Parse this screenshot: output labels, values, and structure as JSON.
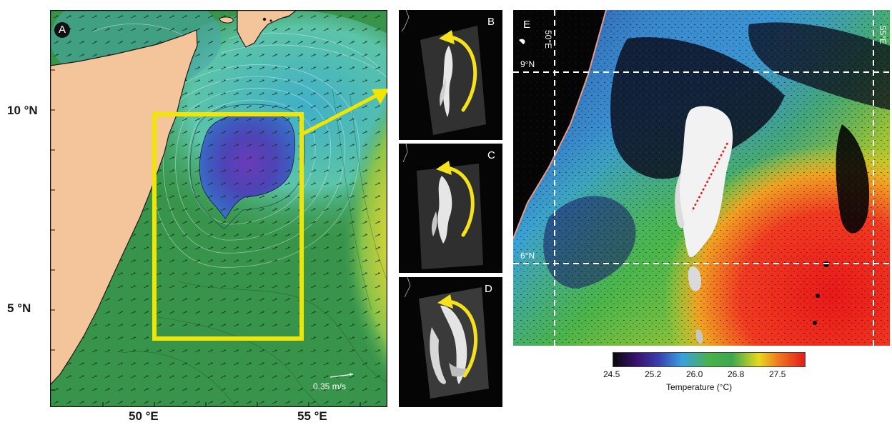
{
  "panel_a": {
    "letter": "A",
    "y_labels": [
      "10 °N",
      "5 °N"
    ],
    "x_labels": [
      "50 °E",
      "55 °E"
    ],
    "scale_label": "0.35 m/s"
  },
  "panel_b": {
    "letter": "B"
  },
  "panel_c": {
    "letter": "C"
  },
  "panel_d": {
    "letter": "D"
  },
  "panel_e": {
    "letter": "E",
    "grid_labels": {
      "lon_50": "50°E",
      "lon_55": "55°E",
      "lat_9": "9°N",
      "lat_6": "6°N"
    }
  },
  "colorbar": {
    "ticks": [
      "24.5",
      "25.2",
      "26.0",
      "26.8",
      "27.5"
    ],
    "label": "Temperature (°C)"
  },
  "colors": {
    "land": "#f4c49b",
    "highlight_box": "#f2e600",
    "rotation_arrow": "#f5e21a",
    "transect": "#e02020"
  }
}
